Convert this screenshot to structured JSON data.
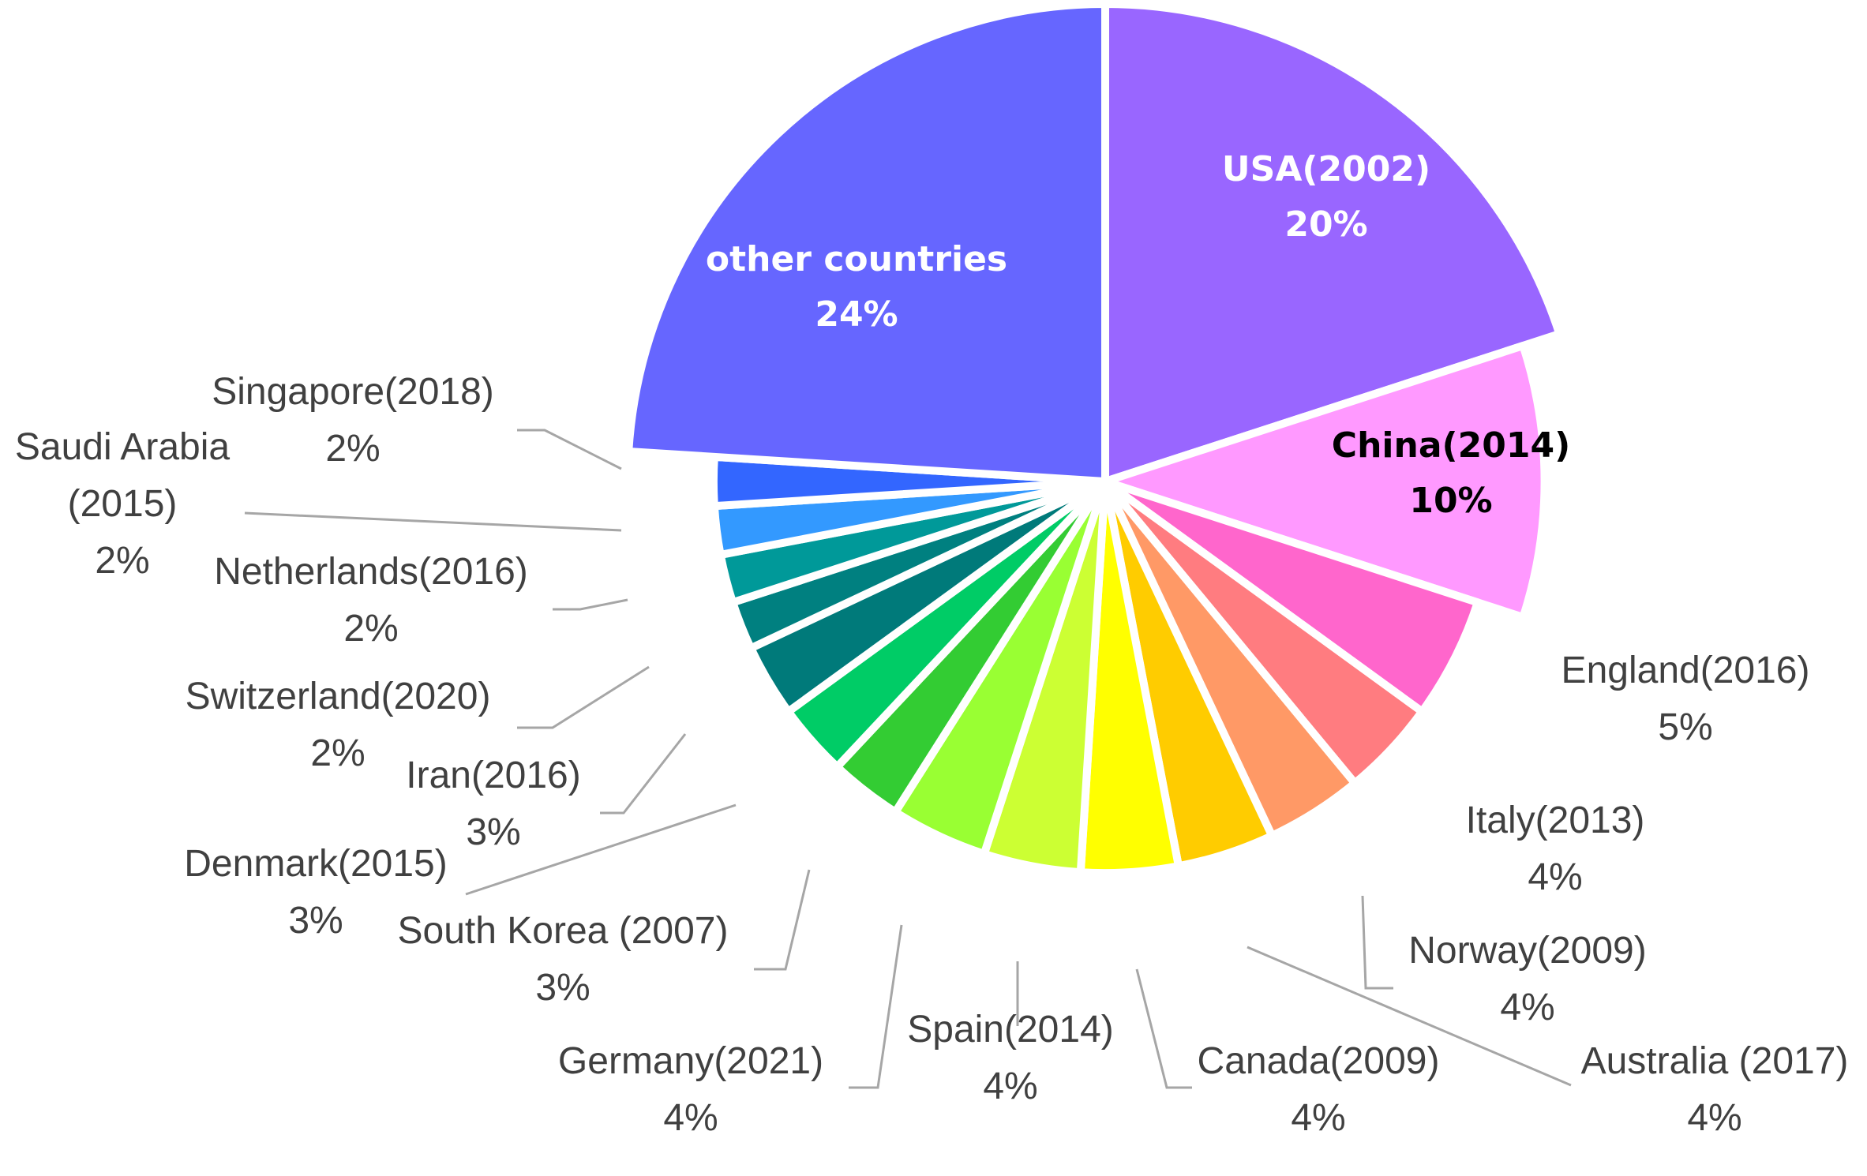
{
  "chart_data": {
    "type": "pie",
    "slices": [
      {
        "label": "USA(2002)",
        "percent_label": "20%",
        "value": 20,
        "color": "#9966ff"
      },
      {
        "label": "China(2014)",
        "percent_label": "10%",
        "value": 10,
        "color": "#ff99ff"
      },
      {
        "label": "England(2016)",
        "percent_label": "5%",
        "value": 5,
        "color": "#ff66cc"
      },
      {
        "label": "Italy(2013)",
        "percent_label": "4%",
        "value": 4,
        "color": "#ff7c80"
      },
      {
        "label": "Norway(2009)",
        "percent_label": "4%",
        "value": 4,
        "color": "#ff9966"
      },
      {
        "label": "Australia (2017)",
        "percent_label": "4%",
        "value": 4,
        "color": "#ffcc00"
      },
      {
        "label": "Canada(2009)",
        "percent_label": "4%",
        "value": 4,
        "color": "#ffff00"
      },
      {
        "label": "Spain(2014)",
        "percent_label": "4%",
        "value": 4,
        "color": "#ccff33"
      },
      {
        "label": "Germany(2021)",
        "percent_label": "4%",
        "value": 4,
        "color": "#99ff33"
      },
      {
        "label": "South Korea (2007)",
        "percent_label": "3%",
        "value": 3,
        "color": "#33cc33"
      },
      {
        "label": "Denmark(2015)",
        "percent_label": "3%",
        "value": 3,
        "color": "#00cc66"
      },
      {
        "label": "Iran(2016)",
        "percent_label": "3%",
        "value": 3,
        "color": "#007a7a"
      },
      {
        "label": "Switzerland(2020)",
        "percent_label": "2%",
        "value": 2,
        "color": "#008080"
      },
      {
        "label": "Netherlands(2016)",
        "percent_label": "2%",
        "value": 2,
        "color": "#009999"
      },
      {
        "label": "Saudi Arabia\n(2015)",
        "percent_label": "2%",
        "value": 2,
        "color": "#3399ff"
      },
      {
        "label": "Singapore(2018)",
        "percent_label": "2%",
        "value": 2,
        "color": "#3366ff"
      },
      {
        "label": "other countries",
        "percent_label": "24%",
        "value": 24,
        "color": "#6666ff"
      }
    ]
  }
}
